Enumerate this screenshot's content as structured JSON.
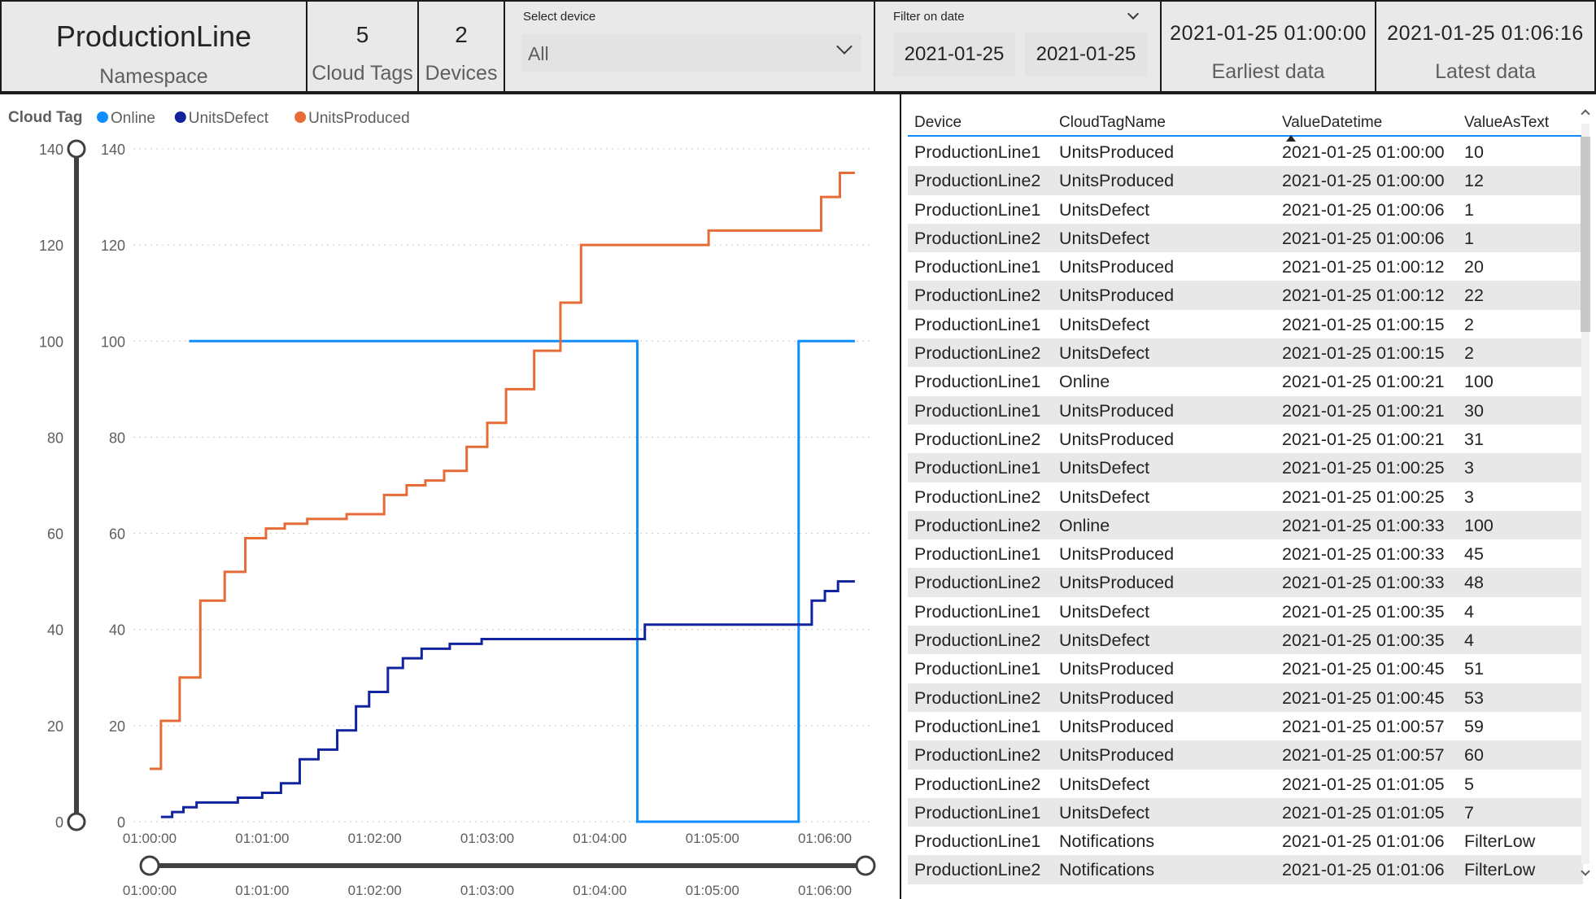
{
  "namespace_card": {
    "value": "ProductionLine",
    "label": "Namespace"
  },
  "tags_card": {
    "value": "5",
    "label": "Cloud Tags"
  },
  "devices_card": {
    "value": "2",
    "label": "Devices"
  },
  "device_slicer": {
    "title": "Select device",
    "selected": "All",
    "icon": "chevron-down-icon"
  },
  "date_slicer": {
    "title": "Filter on date",
    "from": "2021-01-25",
    "to": "2021-01-25",
    "icon": "chevron-down-icon"
  },
  "earliest_card": {
    "value": "2021-01-25 01:00:00",
    "label": "Earliest data"
  },
  "latest_card": {
    "value": "2021-01-25 01:06:16",
    "label": "Latest data"
  },
  "chart_data": {
    "type": "line",
    "step": true,
    "legend_title": "Cloud Tag",
    "legend_position": "top-left",
    "series": [
      {
        "name": "Online",
        "color": "#118dff",
        "points": [
          [
            "01:00:21",
            100
          ],
          [
            "01:04:19",
            100
          ],
          [
            "01:04:20",
            0
          ],
          [
            "01:05:45",
            0
          ],
          [
            "01:05:46",
            100
          ],
          [
            "01:06:16",
            100
          ]
        ]
      },
      {
        "name": "UnitsDefect",
        "color": "#12239e",
        "points": [
          [
            "01:00:06",
            1
          ],
          [
            "01:00:12",
            2
          ],
          [
            "01:00:18",
            3
          ],
          [
            "01:00:25",
            4
          ],
          [
            "01:00:35",
            4
          ],
          [
            "01:00:47",
            5
          ],
          [
            "01:01:00",
            6
          ],
          [
            "01:01:05",
            6
          ],
          [
            "01:01:10",
            8
          ],
          [
            "01:01:20",
            13
          ],
          [
            "01:01:30",
            15
          ],
          [
            "01:01:40",
            19
          ],
          [
            "01:01:50",
            24
          ],
          [
            "01:01:57",
            27
          ],
          [
            "01:02:07",
            32
          ],
          [
            "01:02:15",
            34
          ],
          [
            "01:02:25",
            36
          ],
          [
            "01:02:40",
            37
          ],
          [
            "01:02:57",
            38
          ],
          [
            "01:03:30",
            38
          ],
          [
            "01:04:05",
            38
          ],
          [
            "01:04:24",
            41
          ],
          [
            "01:05:00",
            41
          ],
          [
            "01:05:50",
            41
          ],
          [
            "01:05:53",
            46
          ],
          [
            "01:06:00",
            48
          ],
          [
            "01:06:07",
            50
          ],
          [
            "01:06:16",
            50
          ]
        ]
      },
      {
        "name": "UnitsProduced",
        "color": "#e66c37",
        "points": [
          [
            "01:00:00",
            11
          ],
          [
            "01:00:06",
            21
          ],
          [
            "01:00:16",
            30
          ],
          [
            "01:00:27",
            46
          ],
          [
            "01:00:40",
            52
          ],
          [
            "01:00:51",
            59
          ],
          [
            "01:01:02",
            61
          ],
          [
            "01:01:12",
            62
          ],
          [
            "01:01:24",
            63
          ],
          [
            "01:01:45",
            64
          ],
          [
            "01:02:05",
            68
          ],
          [
            "01:02:17",
            70
          ],
          [
            "01:02:27",
            71
          ],
          [
            "01:02:37",
            73
          ],
          [
            "01:02:49",
            78
          ],
          [
            "01:03:00",
            83
          ],
          [
            "01:03:10",
            90
          ],
          [
            "01:03:25",
            98
          ],
          [
            "01:03:39",
            108
          ],
          [
            "01:03:50",
            120
          ],
          [
            "01:04:19",
            120
          ],
          [
            "01:04:40",
            120
          ],
          [
            "01:04:58",
            123
          ],
          [
            "01:05:30",
            123
          ],
          [
            "01:05:58",
            130
          ],
          [
            "01:06:08",
            135
          ],
          [
            "01:06:16",
            135
          ]
        ]
      }
    ],
    "x_ticks": [
      "01:00:00",
      "01:01:00",
      "01:02:00",
      "01:03:00",
      "01:04:00",
      "01:05:00",
      "01:06:00"
    ],
    "y_ticks": [
      "0",
      "20",
      "40",
      "60",
      "80",
      "100",
      "120",
      "140"
    ],
    "xlim": [
      "01:00:00",
      "01:06:26"
    ],
    "ylim": [
      0,
      140
    ],
    "grid": true
  },
  "table": {
    "columns": [
      "Device",
      "CloudTagName",
      "ValueDatetime",
      "ValueAsText"
    ],
    "sorted_column": "ValueDatetime",
    "rows": [
      [
        "ProductionLine1",
        "UnitsProduced",
        "2021-01-25 01:00:00",
        "10"
      ],
      [
        "ProductionLine2",
        "UnitsProduced",
        "2021-01-25 01:00:00",
        "12"
      ],
      [
        "ProductionLine1",
        "UnitsDefect",
        "2021-01-25 01:00:06",
        "1"
      ],
      [
        "ProductionLine2",
        "UnitsDefect",
        "2021-01-25 01:00:06",
        "1"
      ],
      [
        "ProductionLine1",
        "UnitsProduced",
        "2021-01-25 01:00:12",
        "20"
      ],
      [
        "ProductionLine2",
        "UnitsProduced",
        "2021-01-25 01:00:12",
        "22"
      ],
      [
        "ProductionLine1",
        "UnitsDefect",
        "2021-01-25 01:00:15",
        "2"
      ],
      [
        "ProductionLine2",
        "UnitsDefect",
        "2021-01-25 01:00:15",
        "2"
      ],
      [
        "ProductionLine1",
        "Online",
        "2021-01-25 01:00:21",
        "100"
      ],
      [
        "ProductionLine1",
        "UnitsProduced",
        "2021-01-25 01:00:21",
        "30"
      ],
      [
        "ProductionLine2",
        "UnitsProduced",
        "2021-01-25 01:00:21",
        "31"
      ],
      [
        "ProductionLine1",
        "UnitsDefect",
        "2021-01-25 01:00:25",
        "3"
      ],
      [
        "ProductionLine2",
        "UnitsDefect",
        "2021-01-25 01:00:25",
        "3"
      ],
      [
        "ProductionLine2",
        "Online",
        "2021-01-25 01:00:33",
        "100"
      ],
      [
        "ProductionLine1",
        "UnitsProduced",
        "2021-01-25 01:00:33",
        "45"
      ],
      [
        "ProductionLine2",
        "UnitsProduced",
        "2021-01-25 01:00:33",
        "48"
      ],
      [
        "ProductionLine1",
        "UnitsDefect",
        "2021-01-25 01:00:35",
        "4"
      ],
      [
        "ProductionLine2",
        "UnitsDefect",
        "2021-01-25 01:00:35",
        "4"
      ],
      [
        "ProductionLine1",
        "UnitsProduced",
        "2021-01-25 01:00:45",
        "51"
      ],
      [
        "ProductionLine2",
        "UnitsProduced",
        "2021-01-25 01:00:45",
        "53"
      ],
      [
        "ProductionLine1",
        "UnitsProduced",
        "2021-01-25 01:00:57",
        "59"
      ],
      [
        "ProductionLine2",
        "UnitsProduced",
        "2021-01-25 01:00:57",
        "60"
      ],
      [
        "ProductionLine2",
        "UnitsDefect",
        "2021-01-25 01:01:05",
        "5"
      ],
      [
        "ProductionLine1",
        "UnitsDefect",
        "2021-01-25 01:01:05",
        "7"
      ],
      [
        "ProductionLine1",
        "Notifications",
        "2021-01-25 01:01:06",
        "FilterLow"
      ],
      [
        "ProductionLine2",
        "Notifications",
        "2021-01-25 01:01:06",
        "FilterLow"
      ]
    ]
  }
}
